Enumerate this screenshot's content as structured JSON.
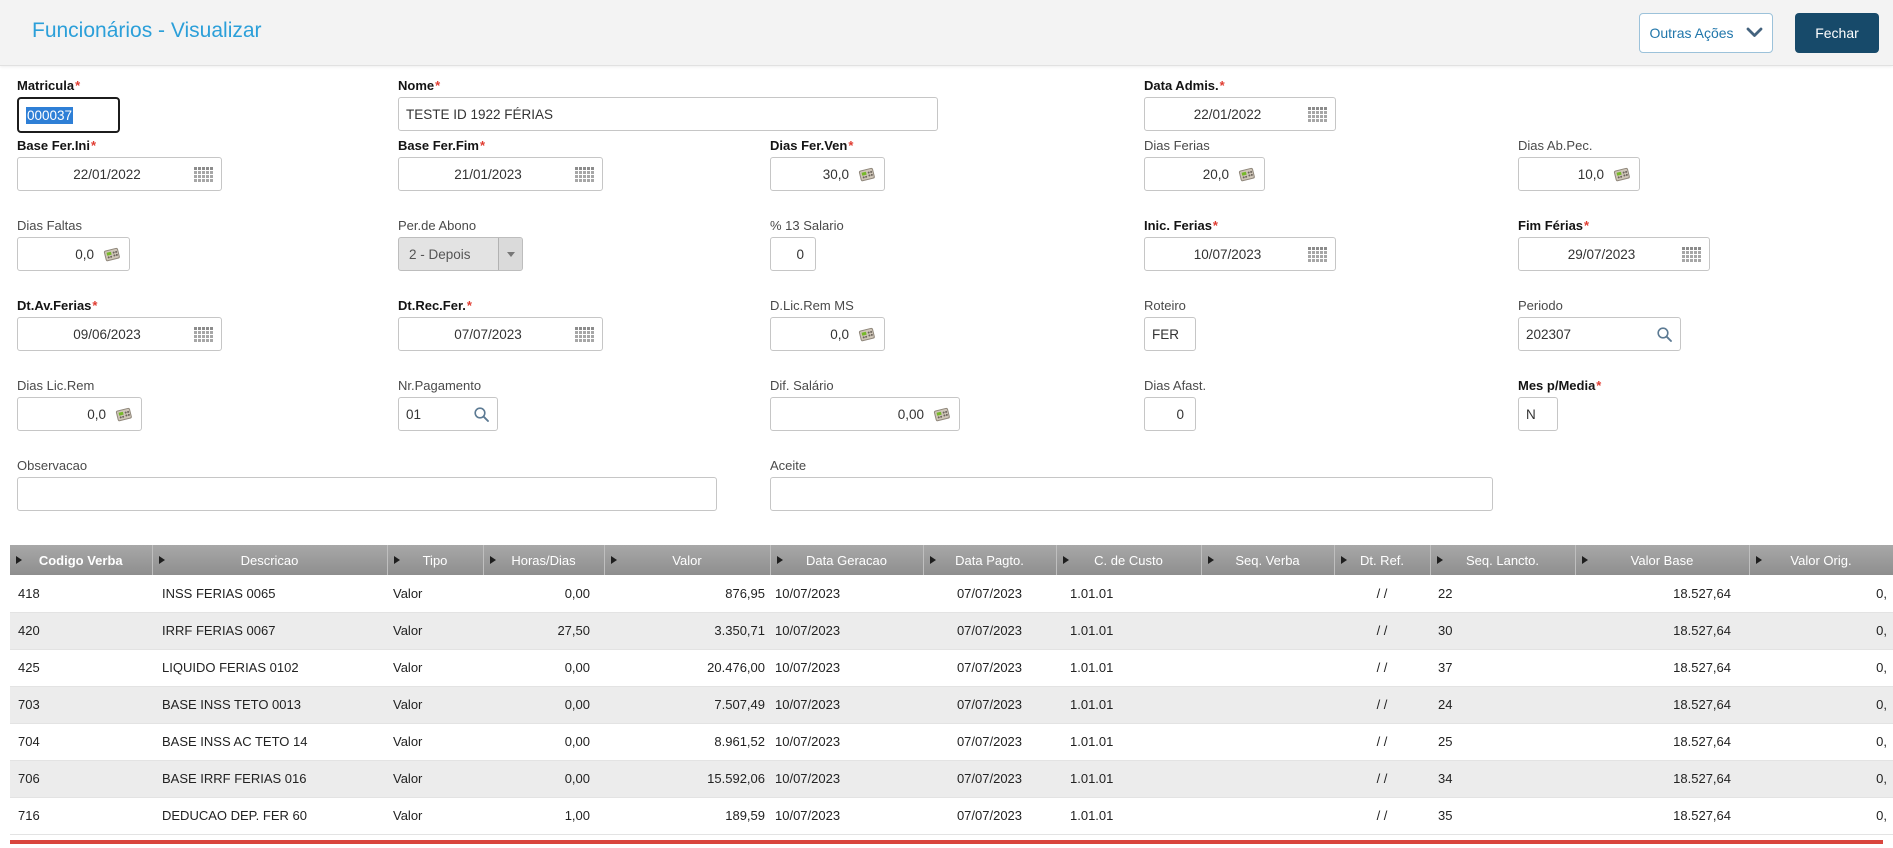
{
  "header": {
    "title": "Funcionários - Visualizar",
    "other_actions_label": "Outras Ações",
    "close_label": "Fechar"
  },
  "form": {
    "required_marker": "*",
    "fields": [
      {
        "id": "matricula",
        "label": "Matricula",
        "required": true,
        "control": "text-focused",
        "value": "000037"
      },
      {
        "id": "nome",
        "label": "Nome",
        "required": true,
        "control": "text",
        "value": "TESTE ID 1922 FÉRIAS"
      },
      {
        "id": "data_admis",
        "label": "Data Admis.",
        "required": true,
        "control": "date",
        "value": "22/01/2022",
        "icon": "calendar-icon"
      },
      {
        "id": "base_fer_ini",
        "label": "Base Fer.Ini",
        "required": true,
        "control": "date",
        "value": "22/01/2022",
        "icon": "calendar-icon"
      },
      {
        "id": "base_fer_fim",
        "label": "Base Fer.Fim",
        "required": true,
        "control": "date",
        "value": "21/01/2023",
        "icon": "calendar-icon"
      },
      {
        "id": "dias_fer_ven",
        "label": "Dias Fer.Ven",
        "required": true,
        "control": "calc",
        "value": "30,0",
        "icon": "calculator-icon"
      },
      {
        "id": "dias_ferias",
        "label": "Dias Ferias",
        "required": false,
        "control": "calc",
        "value": "20,0",
        "icon": "calculator-icon"
      },
      {
        "id": "dias_ab_pec",
        "label": "Dias Ab.Pec.",
        "required": false,
        "control": "calc",
        "value": "10,0",
        "icon": "calculator-icon"
      },
      {
        "id": "dias_faltas",
        "label": "Dias Faltas",
        "required": false,
        "control": "calc",
        "value": "0,0",
        "icon": "calculator-icon"
      },
      {
        "id": "per_de_abono",
        "label": "Per.de Abono",
        "required": false,
        "control": "select",
        "value": "2 - Depois"
      },
      {
        "id": "pct_13_salario",
        "label": "% 13 Salario",
        "required": false,
        "control": "number",
        "value": "0"
      },
      {
        "id": "inic_ferias",
        "label": "Inic. Ferias",
        "required": true,
        "control": "date",
        "value": "10/07/2023",
        "icon": "calendar-icon"
      },
      {
        "id": "fim_ferias",
        "label": "Fim Férias",
        "required": true,
        "control": "date",
        "value": "29/07/2023",
        "icon": "calendar-icon"
      },
      {
        "id": "dt_av_ferias",
        "label": "Dt.Av.Ferias",
        "required": true,
        "control": "date",
        "value": "09/06/2023",
        "icon": "calendar-icon"
      },
      {
        "id": "dt_rec_fer",
        "label": "Dt.Rec.Fer.",
        "required": true,
        "control": "date",
        "value": "07/07/2023",
        "icon": "calendar-icon"
      },
      {
        "id": "d_lic_rem_ms",
        "label": "D.Lic.Rem MS",
        "required": false,
        "control": "calc",
        "value": "0,0",
        "icon": "calculator-icon"
      },
      {
        "id": "roteiro",
        "label": "Roteiro",
        "required": false,
        "control": "text",
        "value": "FER"
      },
      {
        "id": "periodo",
        "label": "Periodo",
        "required": false,
        "control": "lookup",
        "value": "202307",
        "icon": "search-icon"
      },
      {
        "id": "dias_lic_rem",
        "label": "Dias Lic.Rem",
        "required": false,
        "control": "calc",
        "value": "0,0",
        "icon": "calculator-icon"
      },
      {
        "id": "nr_pagamento",
        "label": "Nr.Pagamento",
        "required": false,
        "control": "lookup",
        "value": "01",
        "icon": "search-icon"
      },
      {
        "id": "dif_salario",
        "label": "Dif. Salário",
        "required": false,
        "control": "calc",
        "value": "0,00",
        "icon": "calculator-icon"
      },
      {
        "id": "dias_afast",
        "label": "Dias Afast.",
        "required": false,
        "control": "number",
        "value": "0"
      },
      {
        "id": "mes_p_media",
        "label": "Mes p/Media",
        "required": true,
        "control": "text",
        "value": "N"
      },
      {
        "id": "observacao",
        "label": "Observacao",
        "required": false,
        "control": "text",
        "value": ""
      },
      {
        "id": "aceite",
        "label": "Aceite",
        "required": false,
        "control": "text",
        "value": ""
      }
    ]
  },
  "grid": {
    "columns": [
      {
        "label": "Codigo Verba"
      },
      {
        "label": "Descricao"
      },
      {
        "label": "Tipo"
      },
      {
        "label": "Horas/Dias"
      },
      {
        "label": "Valor"
      },
      {
        "label": "Data Geracao"
      },
      {
        "label": "Data Pagto."
      },
      {
        "label": "C. de Custo"
      },
      {
        "label": "Seq. Verba"
      },
      {
        "label": "Dt. Ref."
      },
      {
        "label": "Seq. Lancto."
      },
      {
        "label": "Valor Base"
      },
      {
        "label": "Valor Orig."
      }
    ],
    "rows": [
      [
        "418",
        "INSS FERIAS 0065",
        "Valor",
        "0,00",
        "876,95",
        "10/07/2023",
        "07/07/2023",
        "1.01.01",
        "",
        "/ /",
        "22",
        "18.527,64",
        "0,"
      ],
      [
        "420",
        "IRRF FERIAS 0067",
        "Valor",
        "27,50",
        "3.350,71",
        "10/07/2023",
        "07/07/2023",
        "1.01.01",
        "",
        "/ /",
        "30",
        "18.527,64",
        "0,"
      ],
      [
        "425",
        "LIQUIDO FERIAS 0102",
        "Valor",
        "0,00",
        "20.476,00",
        "10/07/2023",
        "07/07/2023",
        "1.01.01",
        "",
        "/ /",
        "37",
        "18.527,64",
        "0,"
      ],
      [
        "703",
        "BASE INSS TETO 0013",
        "Valor",
        "0,00",
        "7.507,49",
        "10/07/2023",
        "07/07/2023",
        "1.01.01",
        "",
        "/ /",
        "24",
        "18.527,64",
        "0,"
      ],
      [
        "704",
        "BASE INSS AC TETO 14",
        "Valor",
        "0,00",
        "8.961,52",
        "10/07/2023",
        "07/07/2023",
        "1.01.01",
        "",
        "/ /",
        "25",
        "18.527,64",
        "0,"
      ],
      [
        "706",
        "BASE IRRF FERIAS 016",
        "Valor",
        "0,00",
        "15.592,06",
        "10/07/2023",
        "07/07/2023",
        "1.01.01",
        "",
        "/ /",
        "34",
        "18.527,64",
        "0,"
      ],
      [
        "716",
        "DEDUCAO DEP. FER 60",
        "Valor",
        "1,00",
        "189,59",
        "10/07/2023",
        "07/07/2023",
        "1.01.01",
        "",
        "/ /",
        "35",
        "18.527,64",
        "0,"
      ]
    ]
  },
  "colors": {
    "title_blue": "#2b9fd9",
    "primary_button": "#174a6a",
    "required_red": "#e03c31",
    "selection_blue": "#2e7fd6",
    "grid_header_gray": "#979797",
    "scrollbar_red": "#d9453d"
  }
}
